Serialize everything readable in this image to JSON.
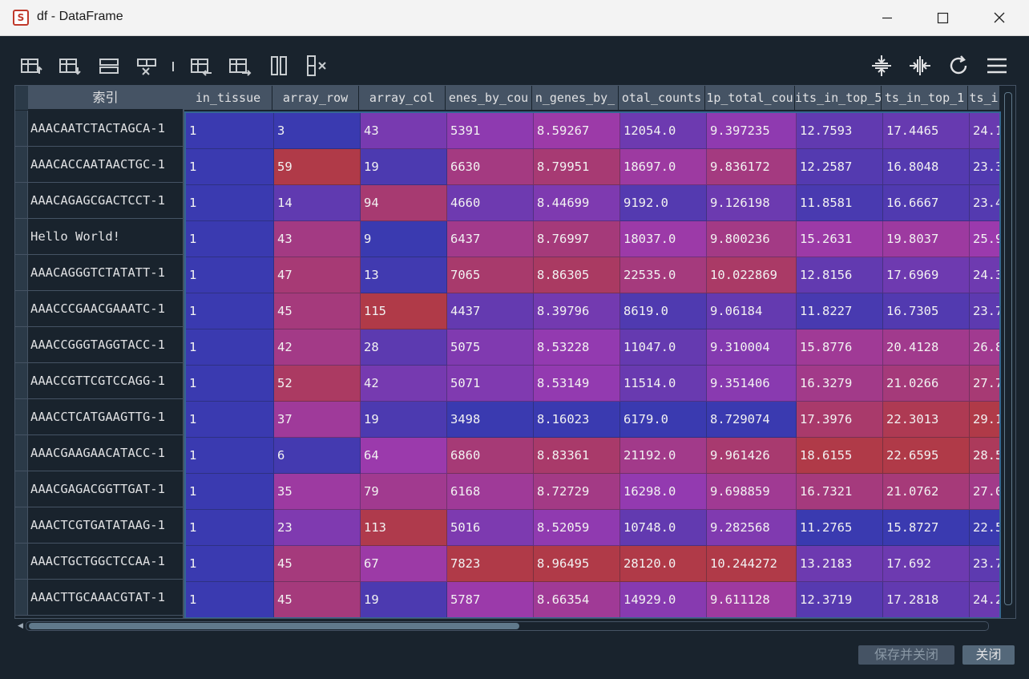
{
  "window": {
    "title": "df - DataFrame",
    "app_icon_glyph": "S"
  },
  "toolbar": {
    "left_icons": [
      "insert-row-above-icon",
      "insert-row-below-icon",
      "rows-icon",
      "delete-row-icon",
      "insert-column-left-icon",
      "insert-column-right-icon",
      "columns-icon",
      "delete-column-icon"
    ],
    "right_icons": [
      "fit-rows-icon",
      "fit-columns-icon",
      "refresh-icon",
      "menu-icon"
    ]
  },
  "index": {
    "header": "索引",
    "rows": [
      "AAACAATCTACTAGCA-1",
      "AAACACCAATAACTGC-1",
      "AAACAGAGCGACTCCT-1",
      "Hello World!",
      "AAACAGGGTCTATATT-1",
      "AAACCCGAACGAAATC-1",
      "AAACCGGGTAGGTACC-1",
      "AAACCGTTCGTCCAGG-1",
      "AAACCTCATGAAGTTG-1",
      "AAACGAAGAACATACC-1",
      "AAACGAGACGGTTGAT-1",
      "AAACTCGTGATATAAG-1",
      "AAACTGCTGGCTCCAA-1",
      "AAACTTGCAAACGTAT-1"
    ]
  },
  "table": {
    "columns": [
      "in_tissue",
      "array_row",
      "array_col",
      "enes_by_cou",
      "n_genes_by_",
      "otal_counts",
      "1p_total_cou",
      "its_in_top_5",
      "ts_in_top_1",
      "ts_i"
    ],
    "rows": [
      [
        "1",
        "3",
        "43",
        "5391",
        "8.59267",
        "12054.0",
        "9.397235",
        "12.7593",
        "17.4465",
        "24.1"
      ],
      [
        "1",
        "59",
        "19",
        "6630",
        "8.79951",
        "18697.0",
        "9.836172",
        "12.2587",
        "16.8048",
        "23.3"
      ],
      [
        "1",
        "14",
        "94",
        "4660",
        "8.44699",
        "9192.0",
        "9.126198",
        "11.8581",
        "16.6667",
        "23.4"
      ],
      [
        "1",
        "43",
        "9",
        "6437",
        "8.76997",
        "18037.0",
        "9.800236",
        "15.2631",
        "19.8037",
        "25.9"
      ],
      [
        "1",
        "47",
        "13",
        "7065",
        "8.86305",
        "22535.0",
        "10.022869",
        "12.8156",
        "17.6969",
        "24.3"
      ],
      [
        "1",
        "45",
        "115",
        "4437",
        "8.39796",
        "8619.0",
        "9.06184",
        "11.8227",
        "16.7305",
        "23.7"
      ],
      [
        "1",
        "42",
        "28",
        "5075",
        "8.53228",
        "11047.0",
        "9.310004",
        "15.8776",
        "20.4128",
        "26.8"
      ],
      [
        "1",
        "52",
        "42",
        "5071",
        "8.53149",
        "11514.0",
        "9.351406",
        "16.3279",
        "21.0266",
        "27.7"
      ],
      [
        "1",
        "37",
        "19",
        "3498",
        "8.16023",
        "6179.0",
        "8.729074",
        "17.3976",
        "22.3013",
        "29.1"
      ],
      [
        "1",
        "6",
        "64",
        "6860",
        "8.83361",
        "21192.0",
        "9.961426",
        "18.6155",
        "22.6595",
        "28.5"
      ],
      [
        "1",
        "35",
        "79",
        "6168",
        "8.72729",
        "16298.0",
        "9.698859",
        "16.7321",
        "21.0762",
        "27.0"
      ],
      [
        "1",
        "23",
        "113",
        "5016",
        "8.52059",
        "10748.0",
        "9.282568",
        "11.2765",
        "15.8727",
        "22.5"
      ],
      [
        "1",
        "45",
        "67",
        "7823",
        "8.96495",
        "28120.0",
        "10.244272",
        "13.2183",
        "17.692",
        "23.7"
      ],
      [
        "1",
        "45",
        "19",
        "5787",
        "8.66354",
        "14929.0",
        "9.611128",
        "12.3719",
        "17.2818",
        "24.2"
      ]
    ],
    "colors": {
      "low": "#3a3ab0",
      "mid": "#9a3ab0",
      "high": "#b03a48"
    }
  },
  "buttons": {
    "save_close": "保存并关闭",
    "close": "关闭"
  }
}
